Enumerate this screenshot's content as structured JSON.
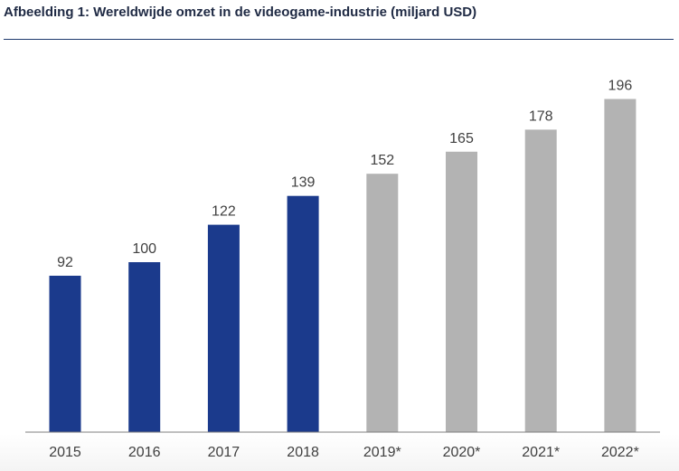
{
  "header": {
    "title": "Afbeelding 1: Wereldwijde omzet in de videogame-industrie (miljard USD)"
  },
  "colors": {
    "actual": "#1b3a8c",
    "forecast": "#b3b3b3",
    "title": "#1f2a44",
    "axis": "#7f7f7f"
  },
  "chart_data": {
    "type": "bar",
    "title": "Afbeelding 1: Wereldwijde omzet in de videogame-industrie (miljard USD)",
    "xlabel": "",
    "ylabel": "",
    "ylim": [
      0,
      200
    ],
    "grid": false,
    "categories": [
      "2015",
      "2016",
      "2017",
      "2018",
      "2019*",
      "2020*",
      "2021*",
      "2022*"
    ],
    "values": [
      92,
      100,
      122,
      139,
      152,
      165,
      178,
      196
    ],
    "data_labels": [
      "92",
      "100",
      "122",
      "139",
      "152",
      "165",
      "178",
      "196"
    ],
    "forecast": [
      false,
      false,
      false,
      false,
      true,
      true,
      true,
      true
    ]
  }
}
